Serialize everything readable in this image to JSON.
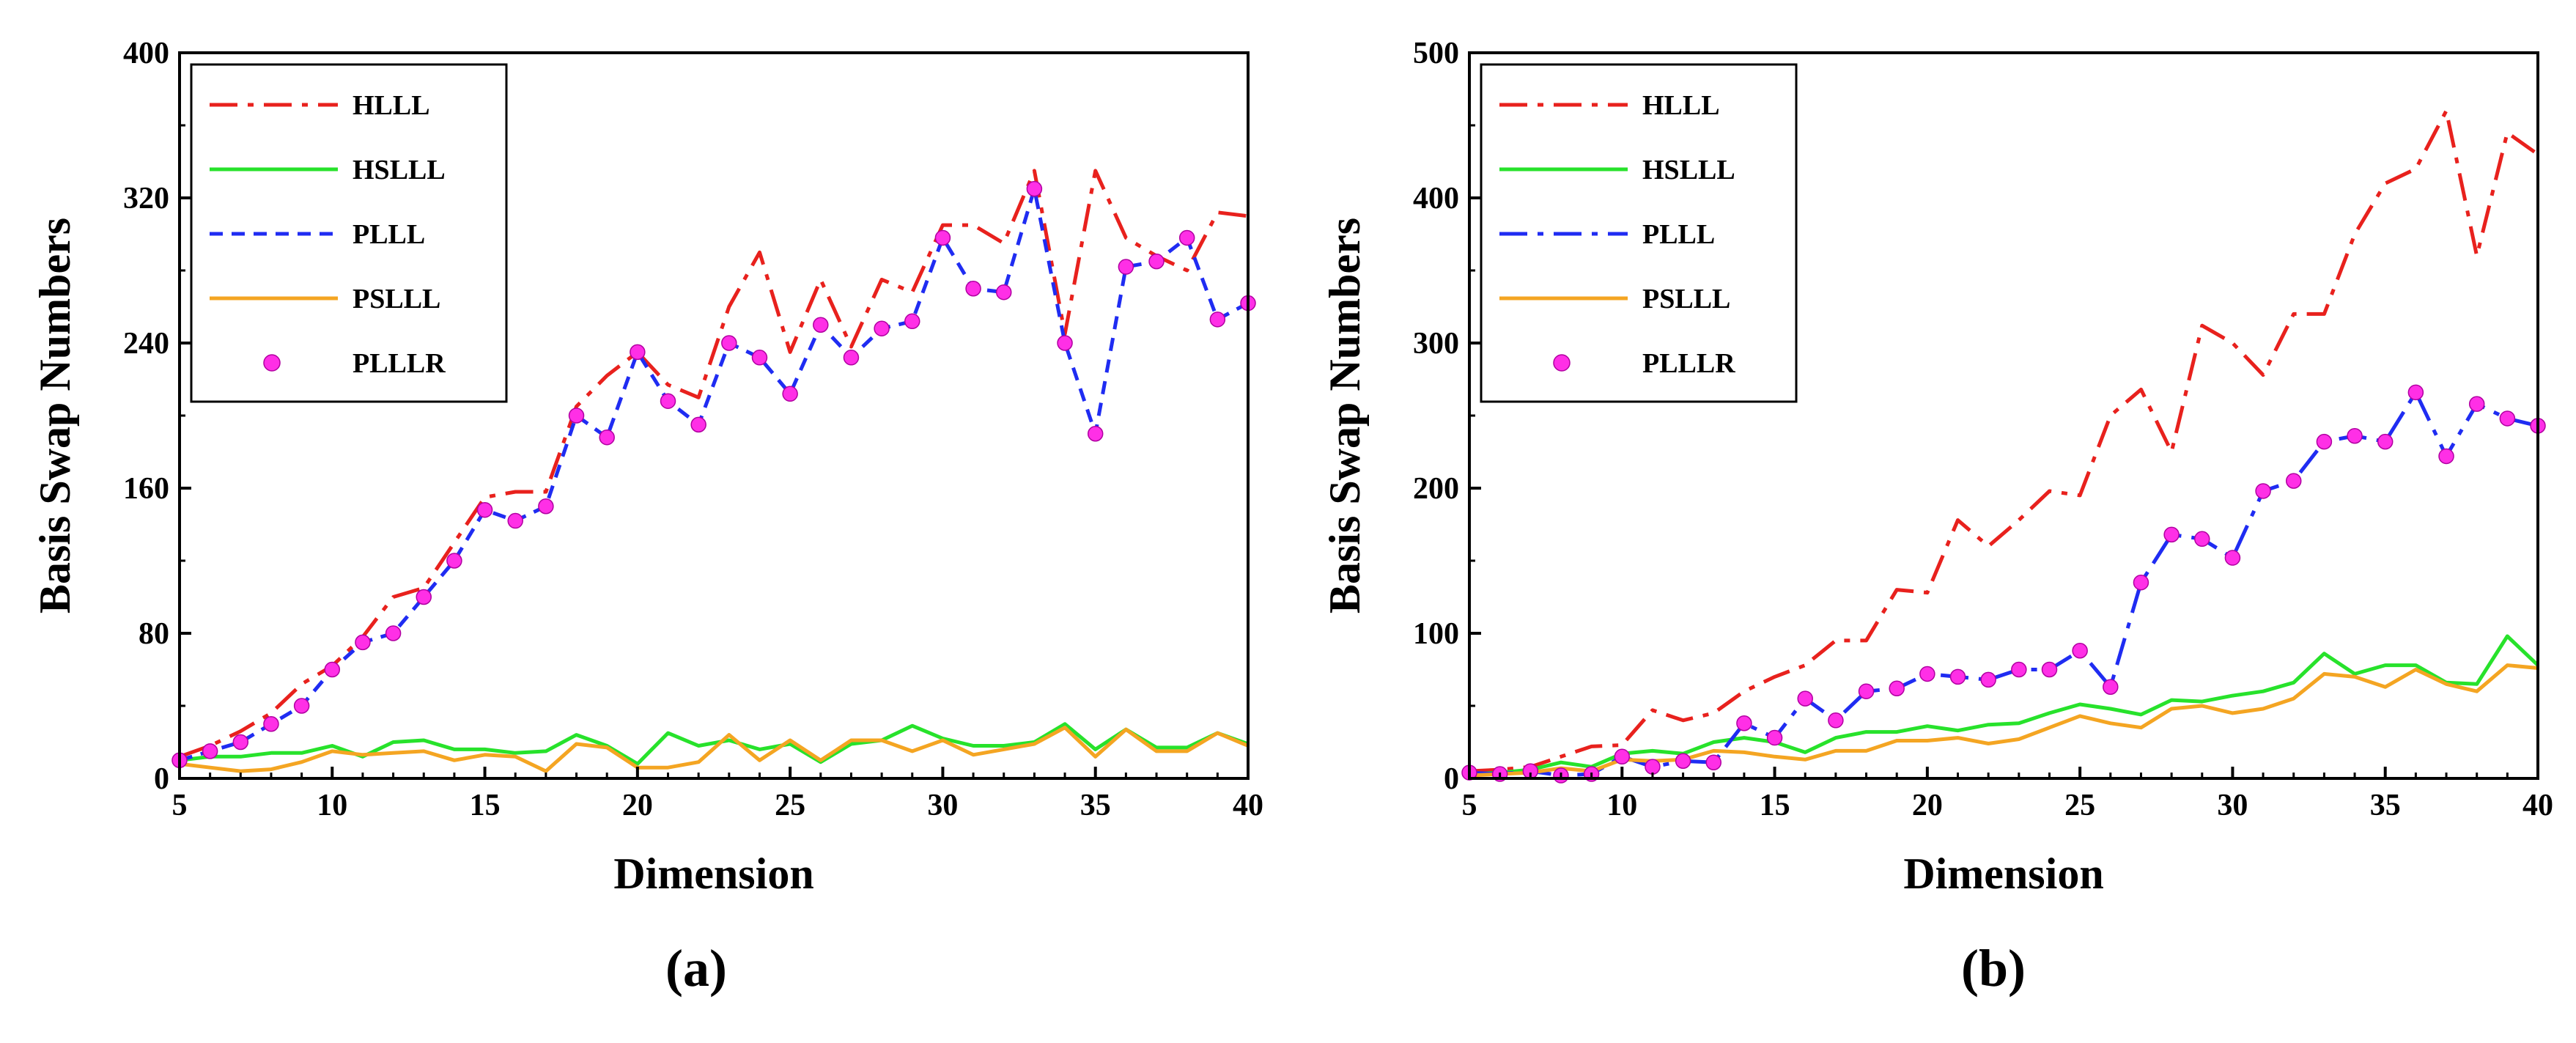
{
  "chart_data": [
    {
      "type": "line",
      "panel_label": "(a)",
      "xlabel": "Dimension",
      "ylabel": "Basis Swap Numbers",
      "xlim": [
        5,
        40
      ],
      "ylim": [
        0,
        400
      ],
      "xticks": [
        5,
        10,
        15,
        20,
        25,
        30,
        35,
        40
      ],
      "yticks": [
        0,
        80,
        160,
        240,
        320,
        400
      ],
      "legend_position": "top-left",
      "x": [
        5,
        6,
        7,
        8,
        9,
        10,
        11,
        12,
        13,
        14,
        15,
        16,
        17,
        18,
        19,
        20,
        21,
        22,
        23,
        24,
        25,
        26,
        27,
        28,
        29,
        30,
        31,
        32,
        33,
        34,
        35,
        36,
        37,
        38,
        39,
        40
      ],
      "series": [
        {
          "name": "HLLL",
          "color": "#e8211d",
          "style": "dashdot",
          "marker": false,
          "values": [
            12,
            18,
            26,
            36,
            52,
            62,
            78,
            100,
            105,
            130,
            155,
            158,
            158,
            205,
            222,
            235,
            217,
            210,
            260,
            290,
            235,
            275,
            238,
            275,
            268,
            305,
            305,
            295,
            335,
            245,
            335,
            298,
            288,
            280,
            312,
            310
          ]
        },
        {
          "name": "HSLLL",
          "color": "#27e22b",
          "style": "solid",
          "marker": false,
          "values": [
            10,
            12,
            12,
            14,
            14,
            18,
            12,
            20,
            21,
            16,
            16,
            14,
            15,
            24,
            18,
            8,
            25,
            18,
            21,
            16,
            19,
            9,
            19,
            21,
            29,
            22,
            18,
            18,
            20,
            30,
            16,
            27,
            17,
            17,
            25,
            19
          ]
        },
        {
          "name": "PLLL",
          "color": "#1f2cf2",
          "style": "dashed",
          "marker": false,
          "values": [
            10,
            15,
            20,
            30,
            40,
            60,
            75,
            80,
            100,
            120,
            148,
            142,
            150,
            200,
            188,
            235,
            208,
            195,
            240,
            232,
            212,
            250,
            232,
            248,
            252,
            298,
            270,
            268,
            325,
            240,
            190,
            282,
            285,
            298,
            253,
            262
          ]
        },
        {
          "name": "PSLLL",
          "color": "#f4a522",
          "style": "solid",
          "marker": false,
          "values": [
            8,
            6,
            4,
            5,
            9,
            15,
            13,
            14,
            15,
            10,
            13,
            12,
            4,
            19,
            17,
            6,
            6,
            9,
            24,
            10,
            21,
            10,
            21,
            21,
            15,
            21,
            13,
            16,
            19,
            28,
            12,
            27,
            15,
            15,
            25,
            18
          ]
        },
        {
          "name": "PLLLR",
          "color": "#ff2fe6",
          "style": "none",
          "marker": true,
          "values": [
            10,
            15,
            20,
            30,
            40,
            60,
            75,
            80,
            100,
            120,
            148,
            142,
            150,
            200,
            188,
            235,
            208,
            195,
            240,
            232,
            212,
            250,
            232,
            248,
            252,
            298,
            270,
            268,
            325,
            240,
            190,
            282,
            285,
            298,
            253,
            262
          ]
        }
      ]
    },
    {
      "type": "line",
      "panel_label": "(b)",
      "xlabel": "Dimension",
      "ylabel": "Basis Swap Numbers",
      "xlim": [
        5,
        40
      ],
      "ylim": [
        0,
        500
      ],
      "xticks": [
        5,
        10,
        15,
        20,
        25,
        30,
        35,
        40
      ],
      "yticks": [
        0,
        100,
        200,
        300,
        400,
        500
      ],
      "legend_position": "top-left",
      "x": [
        5,
        6,
        7,
        8,
        9,
        10,
        11,
        12,
        13,
        14,
        15,
        16,
        17,
        18,
        19,
        20,
        21,
        22,
        23,
        24,
        25,
        26,
        27,
        28,
        29,
        30,
        31,
        32,
        33,
        34,
        35,
        36,
        37,
        38,
        39,
        40
      ],
      "series": [
        {
          "name": "HLLL",
          "color": "#e8211d",
          "style": "dashdot",
          "marker": false,
          "values": [
            5,
            6,
            8,
            15,
            22,
            23,
            47,
            40,
            45,
            60,
            70,
            78,
            95,
            95,
            130,
            128,
            178,
            160,
            178,
            198,
            195,
            250,
            268,
            225,
            312,
            300,
            278,
            320,
            320,
            375,
            410,
            420,
            460,
            360,
            445,
            430
          ]
        },
        {
          "name": "HSLLL",
          "color": "#27e22b",
          "style": "solid",
          "marker": false,
          "values": [
            3,
            4,
            6,
            11,
            8,
            17,
            19,
            17,
            25,
            28,
            25,
            18,
            28,
            32,
            32,
            36,
            33,
            37,
            38,
            45,
            51,
            48,
            44,
            54,
            53,
            57,
            60,
            66,
            86,
            72,
            78,
            78,
            66,
            65,
            98,
            78
          ]
        },
        {
          "name": "PLLL",
          "color": "#1f2cf2",
          "style": "dashdot",
          "marker": false,
          "values": [
            4,
            3,
            5,
            2,
            3,
            15,
            8,
            12,
            11,
            38,
            28,
            55,
            40,
            60,
            62,
            72,
            70,
            68,
            75,
            75,
            88,
            63,
            135,
            168,
            165,
            152,
            198,
            205,
            232,
            236,
            232,
            266,
            222,
            258,
            248,
            243
          ]
        },
        {
          "name": "PSLLL",
          "color": "#f4a522",
          "style": "solid",
          "marker": false,
          "values": [
            2,
            3,
            4,
            7,
            5,
            13,
            12,
            13,
            19,
            18,
            15,
            13,
            19,
            19,
            26,
            26,
            28,
            24,
            27,
            35,
            43,
            38,
            35,
            48,
            50,
            45,
            48,
            55,
            72,
            70,
            63,
            75,
            65,
            60,
            78,
            76
          ]
        },
        {
          "name": "PLLLR",
          "color": "#ff2fe6",
          "style": "none",
          "marker": true,
          "values": [
            4,
            3,
            5,
            2,
            3,
            15,
            8,
            12,
            11,
            38,
            28,
            55,
            40,
            60,
            62,
            72,
            70,
            68,
            75,
            75,
            88,
            63,
            135,
            168,
            165,
            152,
            198,
            205,
            232,
            236,
            232,
            266,
            222,
            258,
            248,
            243
          ]
        }
      ]
    }
  ]
}
